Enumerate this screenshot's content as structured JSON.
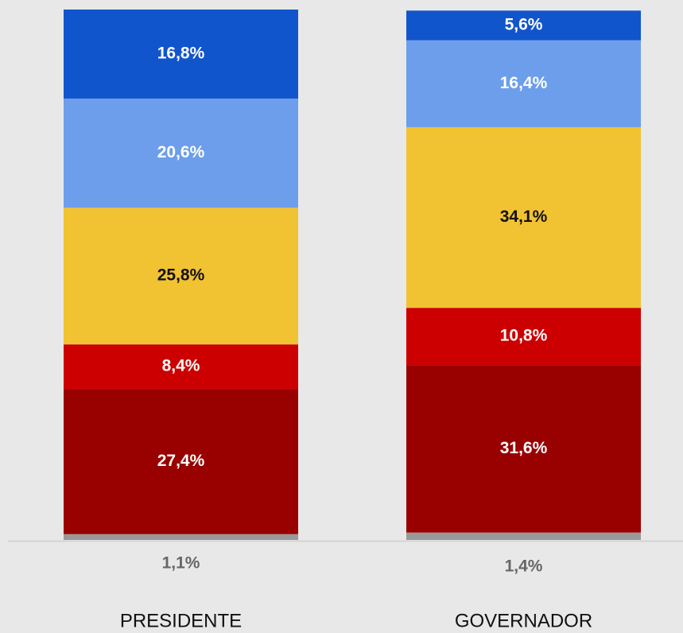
{
  "chart_data": {
    "type": "stacked_bar",
    "categories": [
      "PRESIDENTE",
      "GOVERNADOR"
    ],
    "series": [
      {
        "color": "#999999",
        "values": [
          1.1,
          1.4
        ],
        "value_labels": [
          "1,1%",
          "1,4%"
        ]
      },
      {
        "color": "#990000",
        "values": [
          27.4,
          31.6
        ],
        "value_labels": [
          "27,4%",
          "31,6%"
        ]
      },
      {
        "color": "#cc0000",
        "values": [
          8.4,
          10.8
        ],
        "value_labels": [
          "8,4%",
          "10,8%"
        ]
      },
      {
        "color": "#f1c232",
        "values": [
          25.8,
          34.1
        ],
        "value_labels": [
          "25,8%",
          "34,1%"
        ]
      },
      {
        "color": "#6d9eeb",
        "values": [
          20.6,
          16.4
        ],
        "value_labels": [
          "20,6%",
          "16,4%"
        ]
      },
      {
        "color": "#1155cc",
        "values": [
          16.8,
          5.6
        ],
        "value_labels": [
          "16,8%",
          "5,6%"
        ]
      }
    ]
  }
}
